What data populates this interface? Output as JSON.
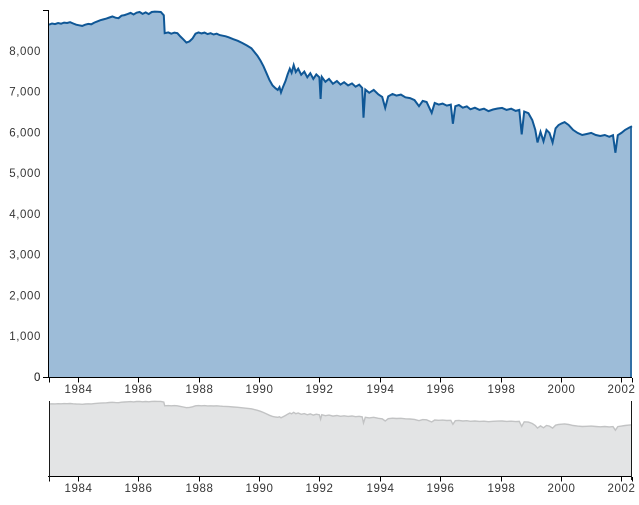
{
  "chart_data": {
    "type": "area",
    "title": "",
    "xlabel": "",
    "ylabel": "",
    "grid": false,
    "legend": null,
    "panels": [
      "detail",
      "overview"
    ],
    "x_domain": [
      1983.05,
      2002.35
    ],
    "ylim": [
      0,
      9000
    ],
    "x_ticks": [
      {
        "v": 1983.05,
        "label": ""
      },
      {
        "v": 1984,
        "label": "1984"
      },
      {
        "v": 1986,
        "label": "1986"
      },
      {
        "v": 1988,
        "label": "1988"
      },
      {
        "v": 1990,
        "label": "1990"
      },
      {
        "v": 1992,
        "label": "1992"
      },
      {
        "v": 1994,
        "label": "1994"
      },
      {
        "v": 1996,
        "label": "1996"
      },
      {
        "v": 1998,
        "label": "1998"
      },
      {
        "v": 2000,
        "label": "2000"
      },
      {
        "v": 2002,
        "label": "2002"
      },
      {
        "v": 2002.35,
        "label": ""
      }
    ],
    "y_ticks": [
      {
        "v": 0,
        "label": "0",
        "tick": true
      },
      {
        "v": 1000,
        "label": "1,000",
        "tick": false
      },
      {
        "v": 2000,
        "label": "2,000",
        "tick": false
      },
      {
        "v": 3000,
        "label": "3,000",
        "tick": false
      },
      {
        "v": 4000,
        "label": "4,000",
        "tick": false
      },
      {
        "v": 5000,
        "label": "5,000",
        "tick": false
      },
      {
        "v": 6000,
        "label": "6,000",
        "tick": false
      },
      {
        "v": 7000,
        "label": "7,000",
        "tick": false
      },
      {
        "v": 8000,
        "label": "8,000",
        "tick": false
      },
      {
        "v": 9000,
        "label": "",
        "tick": true
      }
    ],
    "series": [
      {
        "name": "value",
        "points": [
          [
            1983.05,
            8640
          ],
          [
            1983.15,
            8670
          ],
          [
            1983.25,
            8655
          ],
          [
            1983.35,
            8680
          ],
          [
            1983.45,
            8665
          ],
          [
            1983.55,
            8690
          ],
          [
            1983.65,
            8680
          ],
          [
            1983.75,
            8700
          ],
          [
            1983.85,
            8670
          ],
          [
            1983.95,
            8640
          ],
          [
            1984.05,
            8625
          ],
          [
            1984.15,
            8610
          ],
          [
            1984.25,
            8640
          ],
          [
            1984.35,
            8660
          ],
          [
            1984.45,
            8650
          ],
          [
            1984.55,
            8690
          ],
          [
            1984.65,
            8720
          ],
          [
            1984.75,
            8750
          ],
          [
            1984.85,
            8770
          ],
          [
            1984.95,
            8790
          ],
          [
            1985.05,
            8815
          ],
          [
            1985.15,
            8840
          ],
          [
            1985.25,
            8810
          ],
          [
            1985.35,
            8800
          ],
          [
            1985.45,
            8860
          ],
          [
            1985.55,
            8875
          ],
          [
            1985.65,
            8900
          ],
          [
            1985.75,
            8930
          ],
          [
            1985.85,
            8890
          ],
          [
            1985.95,
            8935
          ],
          [
            1986.05,
            8950
          ],
          [
            1986.15,
            8905
          ],
          [
            1986.25,
            8940
          ],
          [
            1986.35,
            8900
          ],
          [
            1986.45,
            8950
          ],
          [
            1986.55,
            8960
          ],
          [
            1986.65,
            8955
          ],
          [
            1986.75,
            8950
          ],
          [
            1986.85,
            8870
          ],
          [
            1986.88,
            8430
          ],
          [
            1987.0,
            8450
          ],
          [
            1987.1,
            8420
          ],
          [
            1987.2,
            8445
          ],
          [
            1987.3,
            8430
          ],
          [
            1987.4,
            8350
          ],
          [
            1987.5,
            8280
          ],
          [
            1987.6,
            8200
          ],
          [
            1987.7,
            8230
          ],
          [
            1987.8,
            8300
          ],
          [
            1987.9,
            8420
          ],
          [
            1988.0,
            8450
          ],
          [
            1988.1,
            8425
          ],
          [
            1988.2,
            8445
          ],
          [
            1988.3,
            8410
          ],
          [
            1988.4,
            8430
          ],
          [
            1988.5,
            8400
          ],
          [
            1988.6,
            8420
          ],
          [
            1988.7,
            8385
          ],
          [
            1988.8,
            8370
          ],
          [
            1988.9,
            8355
          ],
          [
            1989.0,
            8330
          ],
          [
            1989.15,
            8285
          ],
          [
            1989.3,
            8245
          ],
          [
            1989.45,
            8190
          ],
          [
            1989.6,
            8130
          ],
          [
            1989.75,
            8060
          ],
          [
            1989.85,
            7970
          ],
          [
            1989.95,
            7880
          ],
          [
            1990.05,
            7760
          ],
          [
            1990.15,
            7620
          ],
          [
            1990.25,
            7450
          ],
          [
            1990.35,
            7280
          ],
          [
            1990.45,
            7150
          ],
          [
            1990.55,
            7080
          ],
          [
            1990.62,
            7040
          ],
          [
            1990.68,
            7110
          ],
          [
            1990.73,
            6980
          ],
          [
            1990.8,
            7120
          ],
          [
            1990.88,
            7260
          ],
          [
            1990.95,
            7420
          ],
          [
            1991.02,
            7560
          ],
          [
            1991.08,
            7460
          ],
          [
            1991.15,
            7650
          ],
          [
            1991.22,
            7480
          ],
          [
            1991.3,
            7560
          ],
          [
            1991.4,
            7410
          ],
          [
            1991.5,
            7490
          ],
          [
            1991.6,
            7350
          ],
          [
            1991.7,
            7450
          ],
          [
            1991.8,
            7310
          ],
          [
            1991.9,
            7420
          ],
          [
            1992.0,
            7350
          ],
          [
            1992.04,
            6820
          ],
          [
            1992.08,
            7360
          ],
          [
            1992.2,
            7240
          ],
          [
            1992.32,
            7310
          ],
          [
            1992.45,
            7190
          ],
          [
            1992.58,
            7260
          ],
          [
            1992.7,
            7170
          ],
          [
            1992.82,
            7230
          ],
          [
            1992.95,
            7150
          ],
          [
            1993.08,
            7200
          ],
          [
            1993.2,
            7120
          ],
          [
            1993.32,
            7170
          ],
          [
            1993.42,
            7090
          ],
          [
            1993.46,
            6360
          ],
          [
            1993.52,
            7050
          ],
          [
            1993.65,
            6970
          ],
          [
            1993.8,
            7040
          ],
          [
            1993.95,
            6930
          ],
          [
            1994.08,
            6870
          ],
          [
            1994.18,
            6600
          ],
          [
            1994.28,
            6880
          ],
          [
            1994.42,
            6940
          ],
          [
            1994.55,
            6900
          ],
          [
            1994.7,
            6925
          ],
          [
            1994.85,
            6860
          ],
          [
            1995.0,
            6840
          ],
          [
            1995.15,
            6790
          ],
          [
            1995.3,
            6640
          ],
          [
            1995.42,
            6770
          ],
          [
            1995.55,
            6745
          ],
          [
            1995.72,
            6480
          ],
          [
            1995.82,
            6720
          ],
          [
            1995.95,
            6680
          ],
          [
            1996.08,
            6705
          ],
          [
            1996.22,
            6655
          ],
          [
            1996.35,
            6680
          ],
          [
            1996.42,
            6210
          ],
          [
            1996.5,
            6640
          ],
          [
            1996.62,
            6670
          ],
          [
            1996.75,
            6605
          ],
          [
            1996.88,
            6635
          ],
          [
            1997.0,
            6565
          ],
          [
            1997.15,
            6605
          ],
          [
            1997.3,
            6550
          ],
          [
            1997.45,
            6580
          ],
          [
            1997.6,
            6520
          ],
          [
            1997.75,
            6560
          ],
          [
            1997.9,
            6585
          ],
          [
            1998.05,
            6600
          ],
          [
            1998.2,
            6550
          ],
          [
            1998.35,
            6580
          ],
          [
            1998.5,
            6525
          ],
          [
            1998.62,
            6550
          ],
          [
            1998.7,
            5950
          ],
          [
            1998.78,
            6510
          ],
          [
            1998.92,
            6470
          ],
          [
            1999.05,
            6300
          ],
          [
            1999.15,
            6060
          ],
          [
            1999.22,
            5750
          ],
          [
            1999.32,
            6010
          ],
          [
            1999.42,
            5780
          ],
          [
            1999.52,
            6060
          ],
          [
            1999.62,
            5985
          ],
          [
            1999.72,
            5750
          ],
          [
            1999.82,
            6100
          ],
          [
            1999.92,
            6180
          ],
          [
            2000.02,
            6220
          ],
          [
            2000.12,
            6250
          ],
          [
            2000.25,
            6180
          ],
          [
            2000.4,
            6060
          ],
          [
            2000.55,
            5985
          ],
          [
            2000.7,
            5935
          ],
          [
            2000.85,
            5960
          ],
          [
            2001.0,
            5985
          ],
          [
            2001.15,
            5935
          ],
          [
            2001.3,
            5910
          ],
          [
            2001.45,
            5935
          ],
          [
            2001.6,
            5890
          ],
          [
            2001.72,
            5930
          ],
          [
            2001.8,
            5500
          ],
          [
            2001.88,
            5930
          ],
          [
            2002.0,
            5985
          ],
          [
            2002.12,
            6060
          ],
          [
            2002.25,
            6110
          ],
          [
            2002.35,
            6150
          ]
        ]
      }
    ],
    "colors": {
      "background": "#ffffff",
      "area_fill": "#9dbcd8",
      "series_line": "#0f5796",
      "axis": "#000000",
      "tick_label": "#363636",
      "overview_fill": "#e3e4e5",
      "overview_line": "#c2c3c4",
      "overview_border": "#1a1a1a"
    }
  }
}
